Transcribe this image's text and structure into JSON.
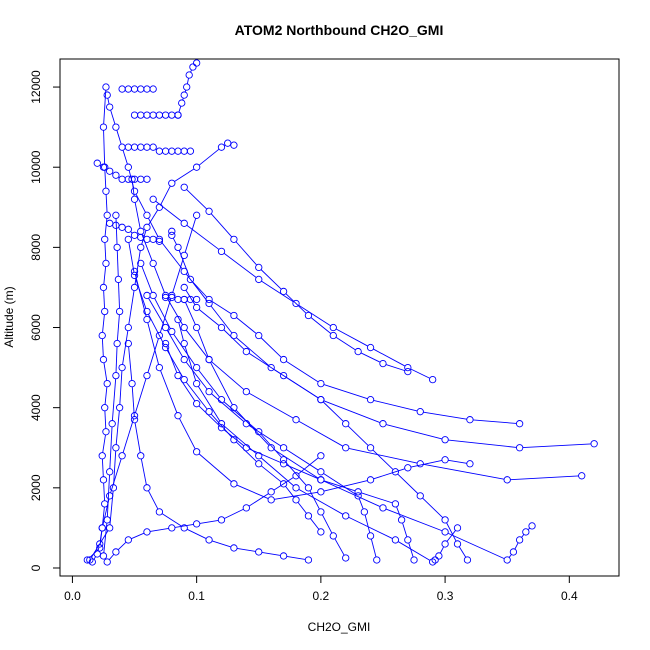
{
  "chart_data": {
    "type": "scatter",
    "title": "ATOM2 Northbound CH2O_GMI",
    "xlabel": "CH2O_GMI",
    "ylabel": "Altitude (m)",
    "xlim": [
      -0.01,
      0.44
    ],
    "ylim": [
      -200,
      12700
    ],
    "x_ticks": [
      0.0,
      0.1,
      0.2,
      0.3,
      0.4
    ],
    "x_tick_labels": [
      "0.0",
      "0.1",
      "0.2",
      "0.3",
      "0.4"
    ],
    "y_ticks": [
      0,
      2000,
      4000,
      6000,
      8000,
      10000,
      12000
    ],
    "y_tick_labels": [
      "0",
      "2000",
      "4000",
      "6000",
      "8000",
      "10000",
      "12000"
    ],
    "grid": false,
    "legend": "none",
    "marker": "open-circle",
    "connected": true,
    "color": "#0000ff",
    "series": [
      {
        "x": [
          0.012,
          0.022,
          0.024,
          0.026,
          0.025,
          0.024,
          0.027,
          0.026,
          0.028,
          0.025,
          0.024,
          0.026,
          0.025,
          0.027,
          0.026,
          0.028,
          0.027,
          0.026,
          0.025,
          0.027
        ],
        "y": [
          200,
          500,
          1000,
          1600,
          2200,
          2800,
          3400,
          4000,
          4600,
          5200,
          5800,
          6400,
          7000,
          7600,
          8200,
          8800,
          9400,
          10000,
          11000,
          12000
        ]
      },
      {
        "x": [
          0.014,
          0.03,
          0.033,
          0.035,
          0.038,
          0.04,
          0.045,
          0.05,
          0.055,
          0.06,
          0.07,
          0.08,
          0.1,
          0.12,
          0.125,
          0.13
        ],
        "y": [
          200,
          1000,
          2000,
          3000,
          4000,
          5000,
          6000,
          7000,
          8000,
          8500,
          9000,
          9600,
          10000,
          10500,
          10600,
          10550
        ]
      },
      {
        "x": [
          0.42,
          0.36,
          0.3,
          0.25,
          0.2,
          0.16,
          0.13,
          0.11,
          0.09,
          0.07,
          0.06,
          0.05,
          0.045,
          0.04,
          0.035,
          0.03,
          0.028
        ],
        "y": [
          3100,
          3000,
          3200,
          3600,
          4200,
          5000,
          5800,
          6600,
          7400,
          8200,
          8800,
          9400,
          10000,
          10500,
          11000,
          11500,
          11800
        ]
      },
      {
        "x": [
          0.41,
          0.35,
          0.28,
          0.22,
          0.18,
          0.14,
          0.11,
          0.09,
          0.075,
          0.065,
          0.055,
          0.05,
          0.048
        ],
        "y": [
          2300,
          2200,
          2600,
          3000,
          3700,
          4400,
          5200,
          6000,
          6800,
          7600,
          8400,
          9200,
          9700
        ]
      },
      {
        "x": [
          0.36,
          0.32,
          0.28,
          0.24,
          0.2,
          0.17,
          0.15,
          0.13,
          0.11,
          0.095,
          0.085,
          0.08,
          0.08
        ],
        "y": [
          3600,
          3700,
          3900,
          4200,
          4600,
          5200,
          5800,
          6300,
          6700,
          7200,
          8000,
          8300,
          8400
        ]
      },
      {
        "x": [
          0.37,
          0.365,
          0.36,
          0.355,
          0.35,
          0.3,
          0.25,
          0.2,
          0.16,
          0.13,
          0.11,
          0.1,
          0.09
        ],
        "y": [
          1050,
          900,
          700,
          400,
          200,
          900,
          1500,
          2200,
          3000,
          4000,
          5200,
          6000,
          6700
        ]
      },
      {
        "x": [
          0.31,
          0.3,
          0.295,
          0.292,
          0.29,
          0.26,
          0.22,
          0.18,
          0.15,
          0.12,
          0.1,
          0.09,
          0.085
        ],
        "y": [
          1000,
          600,
          300,
          200,
          150,
          700,
          1300,
          2000,
          2800,
          3600,
          4600,
          5600,
          6200
        ]
      },
      {
        "x": [
          0.318,
          0.31,
          0.3,
          0.28,
          0.26,
          0.24,
          0.22,
          0.2,
          0.17,
          0.14,
          0.12,
          0.1,
          0.09
        ],
        "y": [
          200,
          600,
          1200,
          1800,
          2400,
          3000,
          3600,
          4200,
          4800,
          5400,
          6000,
          6500,
          7000
        ]
      },
      {
        "x": [
          0.32,
          0.3,
          0.27,
          0.24,
          0.2,
          0.16,
          0.13,
          0.1,
          0.085,
          0.07,
          0.06,
          0.05
        ],
        "y": [
          2600,
          2700,
          2500,
          2200,
          1900,
          1700,
          2100,
          2900,
          3800,
          5000,
          6200,
          7400
        ]
      },
      {
        "x": [
          0.245,
          0.24,
          0.235,
          0.23,
          0.2,
          0.17,
          0.14,
          0.11,
          0.09,
          0.075,
          0.06
        ],
        "y": [
          200,
          800,
          1400,
          1800,
          2400,
          3000,
          3600,
          4400,
          5200,
          6000,
          6800
        ]
      },
      {
        "x": [
          0.275,
          0.27,
          0.265,
          0.26,
          0.23,
          0.2,
          0.17,
          0.14,
          0.12,
          0.1,
          0.085,
          0.075
        ],
        "y": [
          200,
          700,
          1200,
          1600,
          1900,
          2200,
          2600,
          3000,
          3500,
          4100,
          4800,
          5600
        ]
      },
      {
        "x": [
          0.22,
          0.21,
          0.2,
          0.19,
          0.17,
          0.15,
          0.12,
          0.1,
          0.08,
          0.065,
          0.055
        ],
        "y": [
          250,
          800,
          1400,
          2000,
          2700,
          3400,
          4200,
          5000,
          5900,
          6800,
          7600
        ]
      },
      {
        "x": [
          0.2,
          0.19,
          0.18,
          0.17,
          0.15,
          0.13,
          0.11,
          0.09,
          0.075,
          0.06,
          0.05,
          0.045
        ],
        "y": [
          900,
          1300,
          1700,
          2100,
          2600,
          3200,
          3900,
          4700,
          5500,
          6400,
          7300,
          8200
        ]
      },
      {
        "x": [
          0.19,
          0.17,
          0.15,
          0.13,
          0.11,
          0.09,
          0.07,
          0.06,
          0.055,
          0.05,
          0.048,
          0.045
        ],
        "y": [
          200,
          300,
          400,
          500,
          700,
          1000,
          1400,
          2000,
          2800,
          3700,
          4600,
          5600
        ]
      },
      {
        "x": [
          0.1,
          0.097,
          0.094,
          0.092,
          0.09,
          0.088,
          0.085
        ],
        "y": [
          12600,
          12500,
          12300,
          12000,
          11800,
          11600,
          11300
        ]
      },
      {
        "x": [
          0.05,
          0.055,
          0.06,
          0.065,
          0.07,
          0.075,
          0.08,
          0.085
        ],
        "y": [
          11300,
          11300,
          11300,
          11300,
          11300,
          11300,
          11300,
          11300
        ]
      },
      {
        "x": [
          0.04,
          0.045,
          0.05,
          0.055,
          0.06,
          0.065
        ],
        "y": [
          11950,
          11950,
          11950,
          11950,
          11950,
          11950
        ]
      },
      {
        "x": [
          0.045,
          0.05,
          0.055,
          0.06,
          0.065,
          0.07,
          0.075,
          0.08,
          0.085,
          0.09,
          0.095
        ],
        "y": [
          10500,
          10500,
          10500,
          10500,
          10500,
          10400,
          10400,
          10400,
          10400,
          10400,
          10400
        ]
      },
      {
        "x": [
          0.02,
          0.025,
          0.03,
          0.035,
          0.04,
          0.045,
          0.05,
          0.055,
          0.06
        ],
        "y": [
          10100,
          10000,
          9900,
          9800,
          9700,
          9700,
          9700,
          9700,
          9700
        ]
      },
      {
        "x": [
          0.03,
          0.035,
          0.04,
          0.045,
          0.05,
          0.055,
          0.06,
          0.065,
          0.07
        ],
        "y": [
          8600,
          8550,
          8500,
          8450,
          8300,
          8250,
          8200,
          8200,
          8150
        ]
      },
      {
        "x": [
          0.075,
          0.08,
          0.085,
          0.09,
          0.095,
          0.1
        ],
        "y": [
          6750,
          6750,
          6700,
          6700,
          6700,
          6700
        ]
      },
      {
        "x": [
          0.016,
          0.02,
          0.022,
          0.024,
          0.03,
          0.04,
          0.05,
          0.06,
          0.07,
          0.08,
          0.09,
          0.1
        ],
        "y": [
          150,
          350,
          600,
          1000,
          1800,
          2800,
          3800,
          4800,
          5800,
          6800,
          7800,
          8800
        ]
      },
      {
        "x": [
          0.028,
          0.035,
          0.045,
          0.06,
          0.08,
          0.1,
          0.12,
          0.14,
          0.16,
          0.18,
          0.2
        ],
        "y": [
          150,
          400,
          700,
          900,
          1000,
          1100,
          1200,
          1500,
          1900,
          2300,
          2800
        ]
      },
      {
        "x": [
          0.025,
          0.028,
          0.03,
          0.032,
          0.035,
          0.036,
          0.038,
          0.037,
          0.036,
          0.035
        ],
        "y": [
          300,
          1200,
          2400,
          3600,
          4800,
          5600,
          6400,
          7200,
          8000,
          8800
        ]
      },
      {
        "x": [
          0.09,
          0.11,
          0.13,
          0.15,
          0.17,
          0.19,
          0.21,
          0.23,
          0.25,
          0.27
        ],
        "y": [
          9500,
          8900,
          8200,
          7500,
          6900,
          6300,
          5800,
          5400,
          5100,
          4900
        ]
      },
      {
        "x": [
          0.065,
          0.09,
          0.12,
          0.15,
          0.18,
          0.21,
          0.24,
          0.27,
          0.29
        ],
        "y": [
          9200,
          8600,
          7900,
          7200,
          6600,
          6000,
          5500,
          5000,
          4700
        ]
      }
    ]
  }
}
